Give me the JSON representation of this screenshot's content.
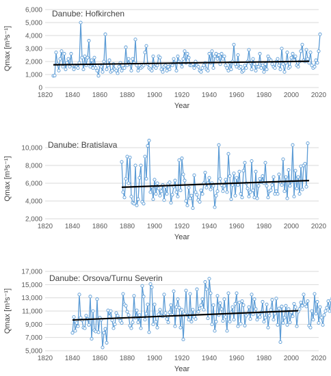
{
  "colors": {
    "series_line": "#5b9bd5",
    "marker_fill": "#ffffff",
    "trend": "#000000",
    "grid": "#d9d9d9",
    "axis_text": "#595959"
  },
  "chart_data": [
    {
      "type": "line",
      "title": "Danube: Hofkirchen",
      "xlabel": "Year",
      "ylabel": "Qmax [m³s⁻¹]",
      "xlim": [
        1820,
        2020
      ],
      "xticks": [
        1820,
        1840,
        1860,
        1880,
        1900,
        1920,
        1940,
        1960,
        1980,
        2000,
        2020
      ],
      "ylim": [
        0,
        6000
      ],
      "yticks": [
        0,
        1000,
        2000,
        3000,
        4000,
        5000,
        6000
      ],
      "ytick_labels": [
        "0",
        "1,000",
        "2,000",
        "3,000",
        "4,000",
        "5,000",
        "6,000"
      ],
      "grid": "horizontal",
      "x_start": 1826,
      "values": [
        900,
        920,
        2700,
        1800,
        1300,
        2200,
        2800,
        1600,
        2600,
        1400,
        1900,
        2200,
        1600,
        2600,
        1700,
        1400,
        1700,
        1600,
        1500,
        1900,
        5000,
        2300,
        1400,
        2400,
        1700,
        2300,
        3600,
        1600,
        2100,
        1500,
        2300,
        1500,
        1300,
        900,
        1700,
        1600,
        1200,
        2000,
        4100,
        1400,
        1700,
        2100,
        1200,
        1300,
        1800,
        1400,
        1300,
        1100,
        1600,
        1900,
        1300,
        1500,
        1500,
        3100,
        1700,
        2200,
        1800,
        1300,
        2200,
        1900,
        3700,
        1700,
        1300,
        1700,
        1500,
        1600,
        1700,
        2700,
        3200,
        1800,
        1500,
        1400,
        1300,
        2400,
        1600,
        1500,
        1700,
        2400,
        2300,
        1400,
        1200,
        1600,
        1700,
        1300,
        1600,
        1400,
        1800,
        1700,
        2200,
        1900,
        1300,
        2400,
        2000,
        1900,
        1600,
        2200,
        2800,
        1900,
        2600,
        2300,
        1700,
        1700,
        1800,
        1500,
        2000,
        1700,
        1600,
        1300,
        1200,
        1500,
        1700,
        1900,
        1400,
        1300,
        2600,
        1900,
        2800,
        1500,
        2400,
        2600,
        2200,
        2500,
        1800,
        2600,
        2200,
        2400,
        1700,
        1500,
        1300,
        1900,
        1400,
        2000,
        3300,
        1800,
        1600,
        2500,
        1500,
        1600,
        1200,
        1300,
        1700,
        1500,
        2000,
        2900,
        1900,
        1400,
        2200,
        1800,
        1300,
        1600,
        1600,
        2600,
        1500,
        1700,
        1200,
        1800,
        1400,
        2400,
        2200,
        2100,
        1800,
        1600,
        1500,
        2000,
        2200,
        1700,
        1400,
        3000,
        1800,
        1200,
        1900,
        2700,
        1500,
        1600,
        2300,
        2600,
        2100,
        2400,
        1700,
        1600,
        2000,
        2800,
        3300,
        2100,
        2000,
        2900,
        2200,
        1900,
        2700,
        1700,
        1500,
        1600,
        2100,
        1900,
        2800,
        4100
      ],
      "trend": {
        "x": [
          1826,
          2013
        ],
        "y": [
          1750,
          2020
        ]
      }
    },
    {
      "type": "line",
      "title": "Danube: Bratislava",
      "xlabel": "Year",
      "ylabel": "Qmax [m³s⁻¹]",
      "xlim": [
        1820,
        2020
      ],
      "xticks": [
        1820,
        1840,
        1860,
        1880,
        1900,
        1920,
        1940,
        1960,
        1980,
        2000,
        2020
      ],
      "ylim": [
        2000,
        11000
      ],
      "yticks": [
        2000,
        4000,
        6000,
        8000,
        10000
      ],
      "ytick_labels": [
        "2,000",
        "4,000",
        "6,000",
        "8,000",
        "10,000"
      ],
      "grid": "horizontal",
      "x_start": 1876,
      "values": [
        8400,
        5000,
        4400,
        6500,
        9000,
        6000,
        8900,
        4500,
        3800,
        3700,
        8000,
        3500,
        4200,
        6600,
        8000,
        3900,
        3700,
        9000,
        6500,
        10200,
        10800,
        5000,
        5600,
        4200,
        6400,
        4800,
        6000,
        5400,
        4600,
        5100,
        5800,
        4100,
        5600,
        4800,
        5900,
        6100,
        3800,
        4700,
        5600,
        6300,
        5000,
        4500,
        8600,
        5200,
        8800,
        7000,
        6300,
        4000,
        3500,
        5500,
        4300,
        4600,
        3200,
        6900,
        5000,
        4700,
        4100,
        3900,
        5200,
        4800,
        6000,
        7200,
        5500,
        6000,
        6600,
        5300,
        6000,
        5700,
        3300,
        4600,
        5100,
        10300,
        6500,
        5800,
        5100,
        5700,
        6400,
        5000,
        9300,
        6800,
        4200,
        5800,
        7100,
        4600,
        6600,
        5800,
        7300,
        4800,
        4400,
        7400,
        8300,
        6000,
        5400,
        4500,
        5000,
        8500,
        5200,
        4400,
        7300,
        4300,
        5700,
        6500,
        6100,
        6800,
        6000,
        8300,
        5700,
        4400,
        5100,
        5200,
        5800,
        6700,
        4800,
        5100,
        4800,
        7000,
        6100,
        5800,
        8700,
        5100,
        6700,
        4300,
        7500,
        5700,
        6200,
        10300,
        4500,
        7400,
        5400,
        6700,
        4800,
        7900,
        5300,
        8000,
        8200,
        5600,
        10500
      ],
      "trend": {
        "x": [
          1876,
          2013
        ],
        "y": [
          5550,
          6300
        ]
      }
    },
    {
      "type": "line",
      "title": "Danube: Orsova/Turnu Severin",
      "xlabel": "Year",
      "ylabel": "Qmax [m³s⁻¹]",
      "xlim": [
        1820,
        2020
      ],
      "xticks": [
        1820,
        1840,
        1860,
        1880,
        1900,
        1920,
        1940,
        1960,
        1980,
        2000,
        2020
      ],
      "ylim": [
        5000,
        17000
      ],
      "yticks": [
        5000,
        7000,
        9000,
        11000,
        13000,
        15000,
        17000
      ],
      "ytick_labels": [
        "5,000",
        "7,000",
        "9,000",
        "11,000",
        "13,000",
        "15,000",
        "17,000"
      ],
      "grid": "horizontal",
      "x_start": 1840,
      "values": [
        7700,
        10100,
        8000,
        9200,
        8700,
        13500,
        10000,
        9600,
        8500,
        8400,
        10300,
        9800,
        8900,
        13200,
        6800,
        11000,
        8100,
        7900,
        12800,
        7800,
        10000,
        9700,
        5500,
        7700,
        8300,
        6200,
        11100,
        10200,
        11000,
        9600,
        8400,
        9000,
        10700,
        10300,
        9900,
        9500,
        9200,
        13600,
        12000,
        11800,
        10900,
        10400,
        8800,
        8400,
        9300,
        13300,
        10000,
        11100,
        9300,
        10400,
        8400,
        14800,
        13200,
        9700,
        10600,
        12000,
        7800,
        15100,
        14600,
        9000,
        12000,
        9400,
        8500,
        10500,
        11200,
        10300,
        10200,
        13500,
        10700,
        9800,
        9300,
        10800,
        11900,
        10400,
        14000,
        8700,
        11600,
        12800,
        11500,
        8500,
        11200,
        6700,
        10600,
        14100,
        10400,
        9700,
        13600,
        9400,
        11200,
        10100,
        9800,
        14300,
        10900,
        11400,
        11900,
        12800,
        11200,
        15400,
        14300,
        9900,
        15900,
        13700,
        9000,
        11900,
        8000,
        9400,
        13300,
        10400,
        12200,
        11300,
        9500,
        12800,
        10100,
        8000,
        13700,
        9400,
        10800,
        11600,
        9700,
        12100,
        13700,
        8700,
        12300,
        9100,
        12500,
        11900,
        8800,
        10300,
        10600,
        11600,
        9800,
        13500,
        10500,
        12800,
        11300,
        9700,
        10400,
        10100,
        10800,
        12400,
        9400,
        10000,
        12000,
        8500,
        10300,
        11200,
        12700,
        9700,
        10600,
        12900,
        8900,
        11400,
        6300,
        11700,
        9200,
        10000,
        11800,
        8900,
        11300,
        9300,
        10800,
        10200,
        12100,
        11600,
        8700,
        10900,
        11300,
        12300,
        11800,
        13500,
        12000,
        11700,
        12500,
        8800,
        8500,
        11000,
        9700,
        13600,
        10600,
        12400,
        9200,
        11600,
        10000,
        8900,
        10400,
        11000,
        11500,
        12500,
        11000,
        12600,
        13000,
        15800
      ],
      "trend": {
        "x": [
          1840,
          2005
        ],
        "y": [
          9650,
          11050
        ]
      }
    }
  ]
}
